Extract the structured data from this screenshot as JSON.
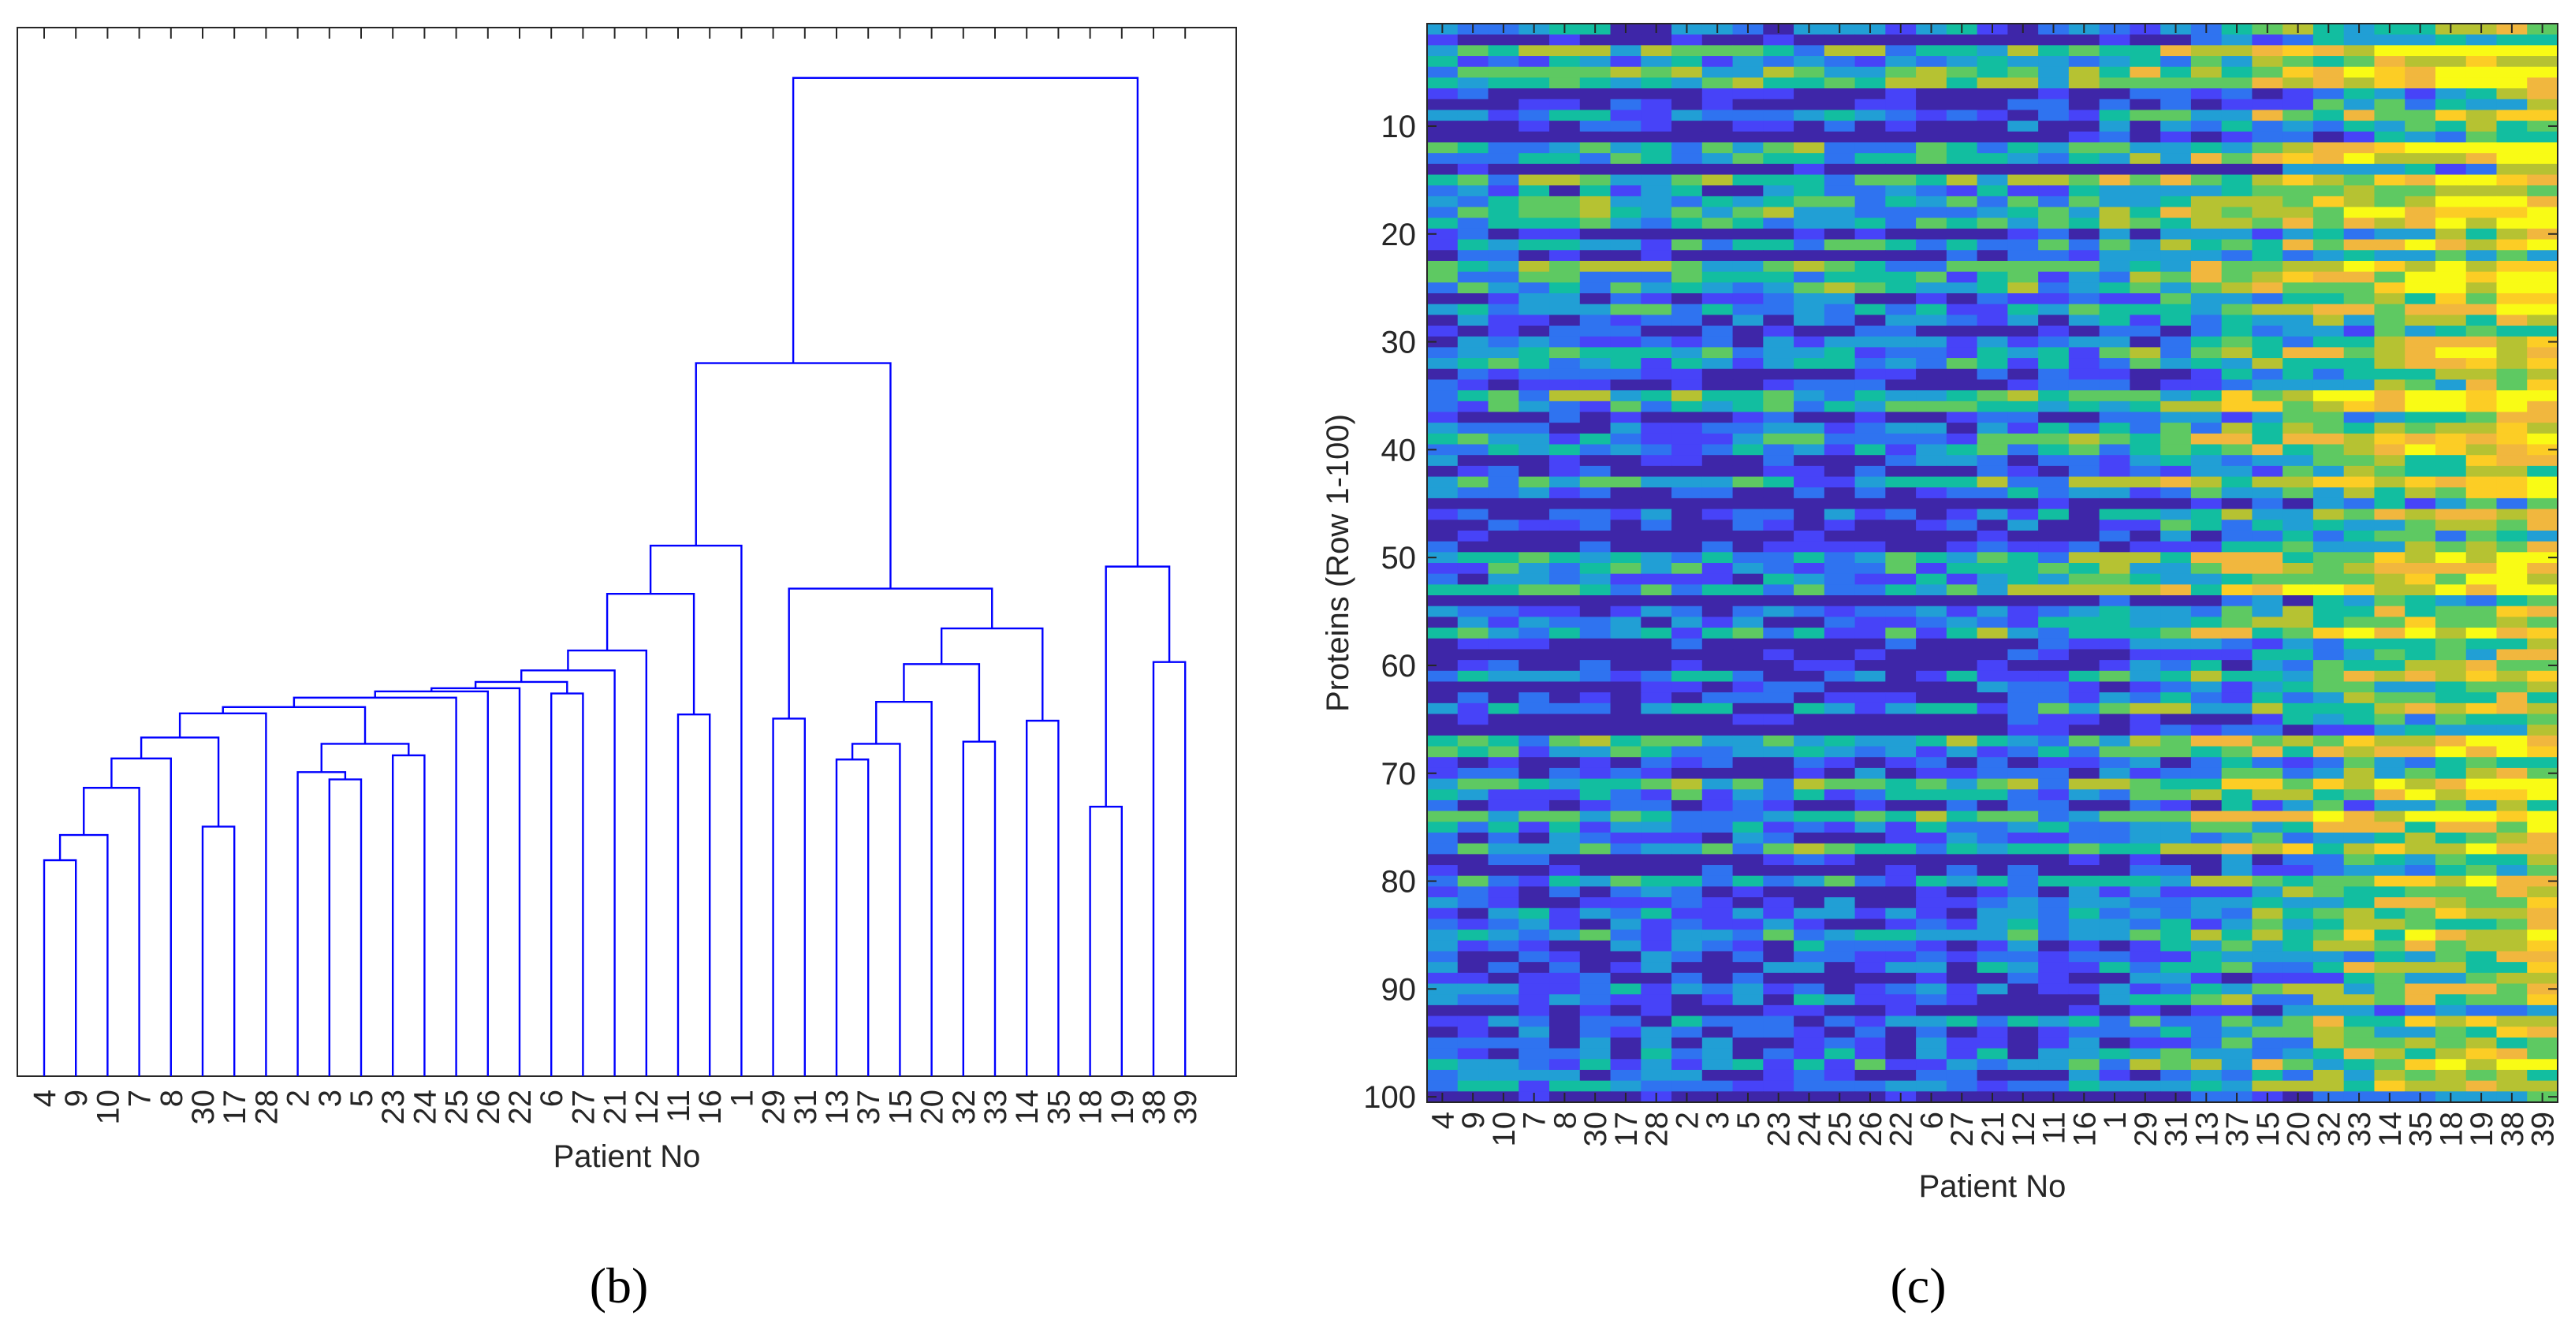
{
  "colors": {
    "dendrogram_line": "#0000ff",
    "axis": "#262626",
    "colormap": [
      "#3e26a8",
      "#4743f8",
      "#2f73f0",
      "#219fd5",
      "#12bea0",
      "#5ec962",
      "#b6c232",
      "#f1b73e",
      "#fccd25",
      "#f9fb15"
    ]
  },
  "chart_data": [
    {
      "type": "dendrogram",
      "panel_label": "(b)",
      "xlabel": "Patient No",
      "ylabel": "",
      "leaf_order": [
        "4",
        "9",
        "10",
        "7",
        "8",
        "30",
        "17",
        "28",
        "2",
        "3",
        "5",
        "23",
        "24",
        "25",
        "26",
        "22",
        "6",
        "27",
        "21",
        "12",
        "11",
        "16",
        "1",
        "29",
        "31",
        "13",
        "37",
        "15",
        "20",
        "32",
        "33",
        "14",
        "35",
        "18",
        "19",
        "38",
        "39"
      ],
      "ylim": [
        0,
        100
      ],
      "merges": [
        {
          "a": 0,
          "b": 1,
          "h": 20.6
        },
        {
          "a": 37,
          "b": 2,
          "h": 23.0
        },
        {
          "a": 38,
          "b": 3,
          "h": 27.5
        },
        {
          "a": 39,
          "b": 4,
          "h": 30.3
        },
        {
          "a": 5,
          "b": 6,
          "h": 23.8
        },
        {
          "a": 40,
          "b": 41,
          "h": 32.3
        },
        {
          "a": 9,
          "b": 10,
          "h": 28.3
        },
        {
          "a": 42,
          "b": 7,
          "h": 34.6
        },
        {
          "a": 8,
          "b": 43,
          "h": 29.0
        },
        {
          "a": 11,
          "b": 12,
          "h": 30.6
        },
        {
          "a": 45,
          "b": 46,
          "h": 31.7
        },
        {
          "a": 44,
          "b": 47,
          "h": 35.2
        },
        {
          "a": 48,
          "b": 13,
          "h": 36.1
        },
        {
          "a": 49,
          "b": 14,
          "h": 36.7
        },
        {
          "a": 50,
          "b": 15,
          "h": 37.0
        },
        {
          "a": 16,
          "b": 17,
          "h": 36.5
        },
        {
          "a": 51,
          "b": 52,
          "h": 37.6
        },
        {
          "a": 53,
          "b": 18,
          "h": 38.7
        },
        {
          "a": 54,
          "b": 19,
          "h": 40.6
        },
        {
          "a": 20,
          "b": 21,
          "h": 34.5
        },
        {
          "a": 55,
          "b": 56,
          "h": 46.0
        },
        {
          "a": 57,
          "b": 22,
          "h": 50.6
        },
        {
          "a": 23,
          "b": 24,
          "h": 34.1
        },
        {
          "a": 25,
          "b": 26,
          "h": 30.2
        },
        {
          "a": 60,
          "b": 27,
          "h": 31.7
        },
        {
          "a": 61,
          "b": 28,
          "h": 35.7
        },
        {
          "a": 29,
          "b": 30,
          "h": 31.9
        },
        {
          "a": 62,
          "b": 63,
          "h": 39.3
        },
        {
          "a": 31,
          "b": 32,
          "h": 33.9
        },
        {
          "a": 64,
          "b": 65,
          "h": 42.7
        },
        {
          "a": 59,
          "b": 66,
          "h": 46.5
        },
        {
          "a": 58,
          "b": 67,
          "h": 68.0
        },
        {
          "a": 33,
          "b": 34,
          "h": 25.7
        },
        {
          "a": 35,
          "b": 36,
          "h": 39.5
        },
        {
          "a": 69,
          "b": 70,
          "h": 48.6
        },
        {
          "a": 68,
          "b": 71,
          "h": 95.2
        }
      ]
    },
    {
      "type": "heatmap",
      "panel_label": "(c)",
      "xlabel": "Patient No",
      "ylabel": "Proteins (Row 1-100)",
      "x_categories": [
        "4",
        "9",
        "10",
        "7",
        "8",
        "30",
        "17",
        "28",
        "2",
        "3",
        "5",
        "23",
        "24",
        "25",
        "26",
        "22",
        "6",
        "27",
        "21",
        "12",
        "11",
        "16",
        "1",
        "29",
        "31",
        "13",
        "37",
        "15",
        "20",
        "32",
        "33",
        "14",
        "35",
        "18",
        "19",
        "38",
        "39"
      ],
      "rows": 100,
      "yticks": [
        10,
        20,
        30,
        40,
        50,
        60,
        70,
        80,
        90,
        100
      ],
      "ylim": [
        0.5,
        100.5
      ],
      "value_range": [
        0,
        1
      ]
    }
  ]
}
